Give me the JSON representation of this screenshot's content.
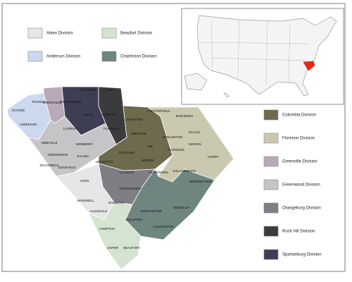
{
  "legend": [
    {
      "name": "Aiken Division",
      "color": "#e6e6e6"
    },
    {
      "name": "Beaufort Division",
      "color": "#d4e4d0"
    },
    {
      "name": "Anderson Division",
      "color": "#ccd8ee"
    },
    {
      "name": "Charleston Division",
      "color": "#6e8580"
    },
    {
      "name": "Columbia Division",
      "color": "#6d6a4d"
    },
    {
      "name": "Florence Division",
      "color": "#cac8af"
    },
    {
      "name": "Greenville Division",
      "color": "#b9a9b9"
    },
    {
      "name": "Greenwood Division",
      "color": "#c6c4c6"
    },
    {
      "name": "Orangeburg Division",
      "color": "#7f7e84"
    },
    {
      "name": "Rock Hill Division",
      "color": "#3b3b3d"
    },
    {
      "name": "Spartanburg Division",
      "color": "#3d3d54"
    }
  ],
  "counties": [
    "OCONEE",
    "PICKENS",
    "GREENVILLE",
    "SPARTANBURG",
    "CHEROKEE",
    "YORK",
    "CHESTER",
    "LANCASTER",
    "CHESTERFIELD",
    "MARLBORO",
    "DILLON",
    "ANDERSON",
    "LAURENS",
    "UNION",
    "FAIRFIELD",
    "KERSHAW",
    "DARLINGTON",
    "MARION",
    "ABBEVILLE",
    "NEWBERRY",
    "LEE",
    "FLORENCE",
    "HORRY",
    "GREENWOOD",
    "SALUDA",
    "RICHLAND",
    "SUMTER",
    "MCCORMICK",
    "EDGEFIELD",
    "LEXINGTON",
    "CALHOUN",
    "CLARENDON",
    "WILLIAMSBURG",
    "AIKEN",
    "ORANGEBURG",
    "GEORGETOWN",
    "BARNWELL",
    "BAMBERG",
    "DORCHESTER",
    "BERKELEY",
    "ALLENDALE",
    "COLLETON",
    "CHARLESTON",
    "HAMPTON",
    "JASPER",
    "BEAUFORT"
  ]
}
